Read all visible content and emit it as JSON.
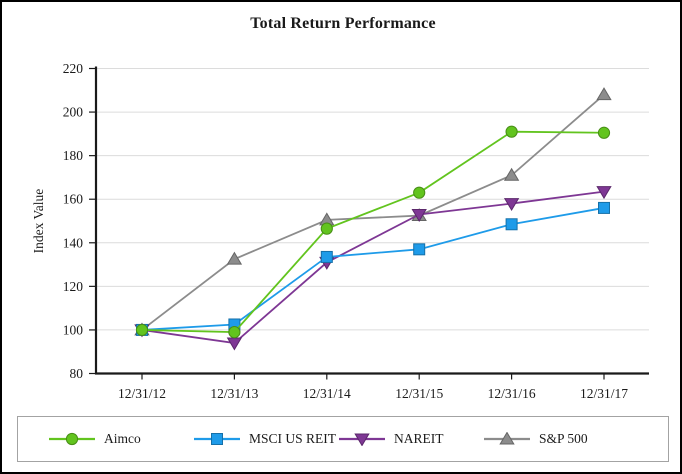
{
  "title": "Total Return Performance",
  "chart_data": {
    "type": "line",
    "title": "Total Return Performance",
    "xlabel": "",
    "ylabel": "Index Value",
    "ylim": [
      80,
      220
    ],
    "y_ticks": [
      80,
      100,
      120,
      140,
      160,
      180,
      200,
      220
    ],
    "grid": true,
    "legend_position": "bottom",
    "categories": [
      "12/31/12",
      "12/31/13",
      "12/31/14",
      "12/31/15",
      "12/31/16",
      "12/31/17"
    ],
    "series": [
      {
        "name": "Aimco",
        "marker": "circle",
        "color": "#62C41E",
        "values": [
          100,
          99,
          146.5,
          163,
          191,
          190.5
        ]
      },
      {
        "name": "MSCI US REIT",
        "marker": "square",
        "color": "#1E9BE9",
        "values": [
          100,
          102.5,
          133.5,
          137,
          148.5,
          156
        ]
      },
      {
        "name": "NAREIT",
        "marker": "triangle-down",
        "color": "#7E3794",
        "values": [
          100,
          94,
          131,
          153,
          158,
          163.5
        ]
      },
      {
        "name": "S&P 500",
        "marker": "triangle-up",
        "color": "#8C8C8C",
        "values": [
          100,
          132.5,
          150.5,
          152.5,
          171,
          208
        ]
      }
    ]
  },
  "colors": {
    "grid": "#dcdcdc",
    "axis": "#1a1a1a",
    "text": "#1a1a1a",
    "legend_border": "#a3a3a3",
    "frame_border": "#000000"
  }
}
